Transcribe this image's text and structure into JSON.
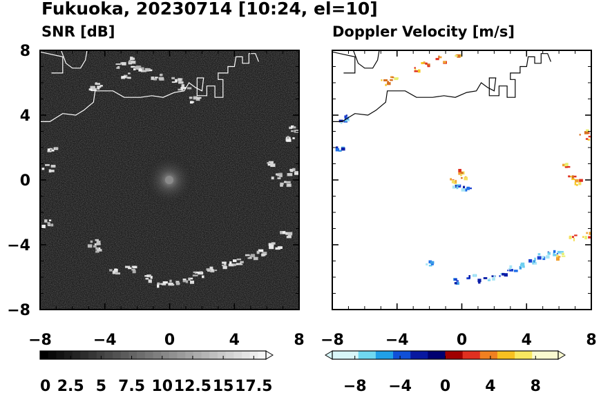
{
  "title": "Fukuoka, 20230714 [10:24, el=10]",
  "charts": [
    {
      "type": "heatmap",
      "title": "SNR [dB]",
      "xlim": [
        -8,
        8
      ],
      "ylim": [
        -8,
        8
      ],
      "xticks": [
        "−8",
        "−4",
        "0",
        "4",
        "8"
      ],
      "yticks": [
        "8",
        "4",
        "0",
        "−4",
        "−8"
      ],
      "colorbar": {
        "range": [
          0,
          18.5
        ],
        "ticks": [
          "0",
          "2.5",
          "5",
          "7.5",
          "10",
          "12.5",
          "15",
          "17.5"
        ],
        "extend": "max",
        "colormap": "gray"
      }
    },
    {
      "type": "heatmap",
      "title": "Doppler Velocity [m/s]",
      "xlim": [
        -8,
        8
      ],
      "ylim": [
        -8,
        8
      ],
      "xticks": [
        "−8",
        "−4",
        "0",
        "4",
        "8"
      ],
      "yticks": [],
      "colorbar": {
        "range": [
          -10,
          10
        ],
        "ticks": [
          "−8",
          "−4",
          "0",
          "4",
          "8"
        ],
        "extend": "both",
        "colormap": "blue-to-yellow diverging"
      }
    }
  ],
  "colors": {
    "snr_background": "#1c1c1c",
    "echo": "#e8e8e8",
    "coastline_snr": "#ffffff",
    "coastline_doppler": "#000000",
    "neg_velocity": "#1a3fd0",
    "pos_velocity": "#f7c820"
  }
}
